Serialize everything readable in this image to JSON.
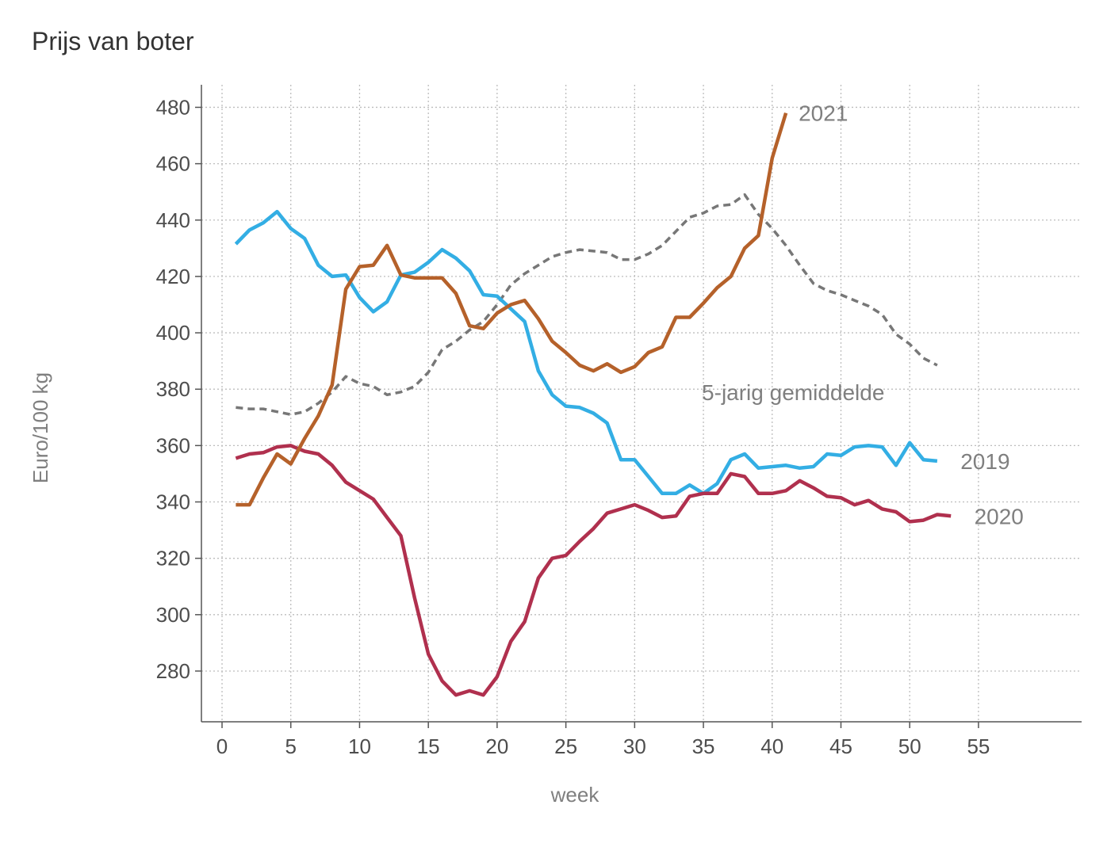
{
  "chart_data": {
    "type": "line",
    "title": "Prijs van boter",
    "xlabel": "week",
    "ylabel": "Euro/100 kg",
    "xlim": [
      -1.5,
      62.5
    ],
    "ylim": [
      262,
      488
    ],
    "xticks": [
      0,
      5,
      10,
      15,
      20,
      25,
      30,
      35,
      40,
      45,
      50,
      55
    ],
    "yticks": [
      280,
      300,
      320,
      340,
      360,
      380,
      400,
      420,
      440,
      460,
      480
    ],
    "grid": true,
    "series": [
      {
        "name": "5-jarig gemiddelde",
        "color": "#777777",
        "dash": true,
        "x": [
          1,
          2,
          3,
          4,
          5,
          6,
          7,
          8,
          9,
          10,
          11,
          12,
          13,
          14,
          15,
          16,
          17,
          18,
          19,
          20,
          21,
          22,
          23,
          24,
          25,
          26,
          27,
          28,
          29,
          30,
          31,
          32,
          33,
          34,
          35,
          36,
          37,
          38,
          39,
          40,
          41,
          42,
          43,
          44,
          45,
          46,
          47,
          48,
          49,
          50,
          51,
          52
        ],
        "y": [
          373.5,
          373,
          373,
          372,
          371,
          372,
          375,
          379,
          384.5,
          382,
          381,
          378,
          379,
          381,
          386,
          394,
          397,
          401,
          404,
          410,
          417,
          421,
          424,
          427,
          428.5,
          429.5,
          429,
          428.5,
          426,
          426,
          428,
          431,
          436,
          441,
          442.5,
          445,
          445.5,
          449,
          442,
          437,
          431,
          424,
          417.5,
          415,
          413.5,
          411.5,
          409.5,
          406.5,
          399.5,
          396,
          391,
          388.5
        ]
      },
      {
        "name": "2019",
        "color": "#33aee4",
        "dash": false,
        "x": [
          1,
          2,
          3,
          4,
          5,
          6,
          7,
          8,
          9,
          10,
          11,
          12,
          13,
          14,
          15,
          16,
          17,
          18,
          19,
          20,
          21,
          22,
          23,
          24,
          25,
          26,
          27,
          28,
          29,
          30,
          31,
          32,
          33,
          34,
          35,
          36,
          37,
          38,
          39,
          40,
          41,
          42,
          43,
          44,
          45,
          46,
          47,
          48,
          49,
          50,
          51,
          52
        ],
        "y": [
          431.5,
          436.5,
          439,
          443,
          437,
          433.5,
          424,
          420,
          420.5,
          412.5,
          407.5,
          411,
          420.5,
          421.5,
          425,
          429.5,
          426.5,
          422,
          413.5,
          413,
          408.5,
          404,
          386.5,
          378,
          374,
          373.5,
          371.5,
          368,
          355,
          355,
          349,
          343,
          343,
          346,
          343,
          346.5,
          355,
          357,
          352,
          352.5,
          353,
          352,
          352.5,
          357,
          356.5,
          359.5,
          360,
          359.5,
          353,
          361,
          355,
          354.5
        ]
      },
      {
        "name": "2020",
        "color": "#b0304e",
        "dash": false,
        "x": [
          1,
          2,
          3,
          4,
          5,
          6,
          7,
          8,
          9,
          10,
          11,
          12,
          13,
          14,
          15,
          16,
          17,
          18,
          19,
          20,
          21,
          22,
          23,
          24,
          25,
          26,
          27,
          28,
          29,
          30,
          31,
          32,
          33,
          34,
          35,
          36,
          37,
          38,
          39,
          40,
          41,
          42,
          43,
          44,
          45,
          46,
          47,
          48,
          49,
          50,
          51,
          52,
          53
        ],
        "y": [
          355.5,
          357,
          357.5,
          359.5,
          360,
          358,
          357,
          353,
          347,
          344,
          341,
          334.5,
          328,
          306,
          286,
          276.5,
          271.5,
          273,
          271.5,
          278,
          290.5,
          297.5,
          313,
          320,
          321,
          326,
          330.5,
          336,
          337.5,
          339,
          337,
          334.5,
          335,
          342,
          343,
          343,
          350,
          349,
          343,
          343,
          344,
          347.5,
          345,
          342,
          341.5,
          339,
          340.5,
          337.5,
          336.5,
          333,
          333.5,
          335.5,
          335
        ]
      },
      {
        "name": "2021",
        "color": "#b5612a",
        "dash": false,
        "x": [
          1,
          2,
          3,
          4,
          5,
          6,
          7,
          8,
          9,
          10,
          11,
          12,
          13,
          14,
          15,
          16,
          17,
          18,
          19,
          20,
          21,
          22,
          23,
          24,
          25,
          26,
          27,
          28,
          29,
          30,
          31,
          32,
          33,
          34,
          35,
          36,
          37,
          38,
          39,
          40,
          41
        ],
        "y": [
          339,
          339,
          348.5,
          357,
          353.5,
          362.5,
          370.5,
          381.5,
          415.5,
          423.5,
          424,
          431,
          420.5,
          419.5,
          419.5,
          419.5,
          414,
          402.5,
          401.5,
          407,
          410,
          411.5,
          405,
          397,
          393,
          388.5,
          386.5,
          389,
          386,
          388,
          393,
          395,
          405.5,
          405.5,
          410.5,
          416,
          420,
          430,
          434.5,
          462,
          478
        ]
      }
    ]
  }
}
